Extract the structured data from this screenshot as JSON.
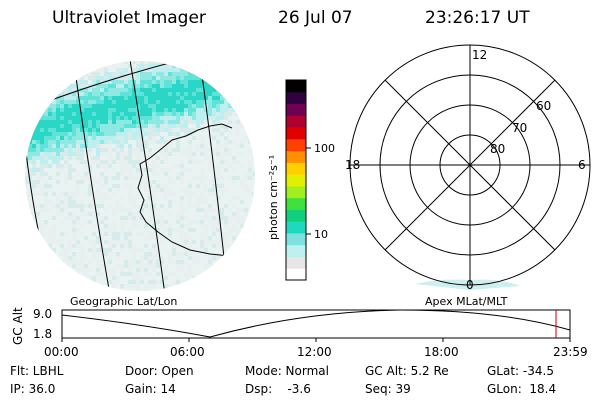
{
  "header": {
    "title": "Ultraviolet Imager",
    "date": "26 Jul 07",
    "time": "23:26:17 UT"
  },
  "colorbar": {
    "unit_label": "photon cm⁻²s⁻¹",
    "ticks": [
      "100",
      "10"
    ],
    "colors": [
      "#ffffff",
      "#e6e6e6",
      "#bfefef",
      "#80e0e0",
      "#20d8c0",
      "#10d080",
      "#40e040",
      "#a0f020",
      "#e0f000",
      "#ffd000",
      "#ff9000",
      "#ff4000",
      "#e00000",
      "#b00030",
      "#700050",
      "#300040",
      "#000000"
    ]
  },
  "polar_plot": {
    "mlt_labels": [
      "12",
      "18",
      "6",
      "0"
    ],
    "lat_labels": [
      "60",
      "70",
      "80"
    ]
  },
  "geo_plot": {
    "caption": "Geographic Lat/Lon"
  },
  "apex_caption": "Apex MLat/MLT",
  "altitude_chart": {
    "y_label": "GC Alt",
    "y_ticks": [
      "9.0",
      "1.8"
    ],
    "x_ticks": [
      "00:00",
      "06:00",
      "12:00",
      "18:00",
      "23:59"
    ],
    "marker_color": "#c00000"
  },
  "footer": {
    "flt": "Flt: LBHL",
    "ip": "IP: 36.0",
    "door": "Door: Open",
    "gain": "Gain: 14",
    "mode": "Mode: Normal",
    "dsp": "Dsp:    -3.6",
    "gc_alt": "GC Alt: 5.2 Re",
    "seq": "Seq: 39",
    "glat": "GLat: -34.5",
    "glon": "GLon:  18.4"
  }
}
